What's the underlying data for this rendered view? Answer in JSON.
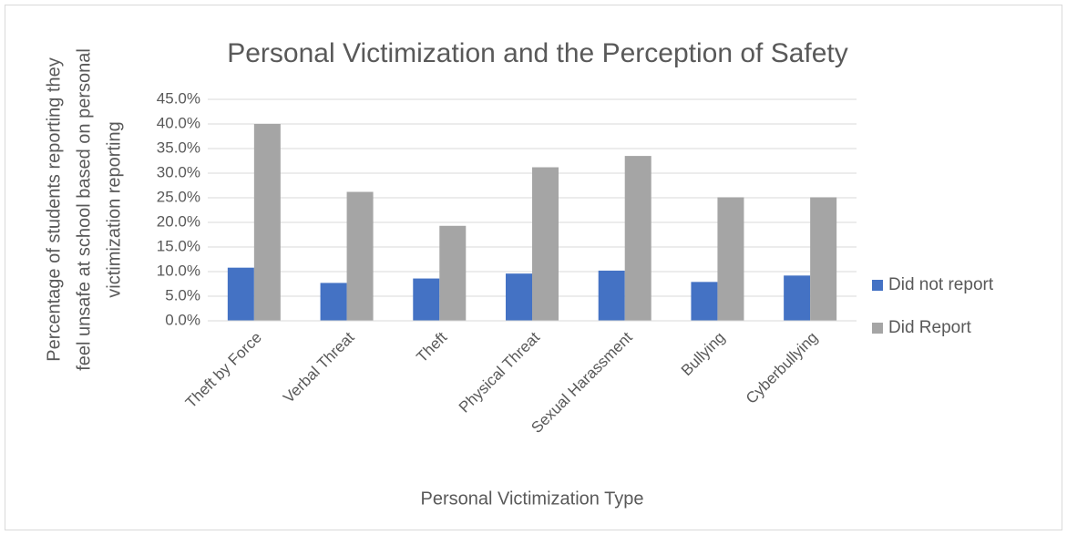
{
  "chart_data": {
    "type": "bar",
    "title": "Personal Victimization and the Perception of Safety",
    "x_label": "Personal Victimization Type",
    "y_label": [
      "Percentage of students reporting they",
      "feel unsafe at school based on personal",
      "victimization reporting"
    ],
    "categories": [
      "Theft by Force",
      "Verbal Threat",
      "Theft",
      "Physical Threat",
      "Sexual Harassment",
      "Bullying",
      "Cyberbullying"
    ],
    "series": [
      {
        "name": "Did not report",
        "color": "#4472c4",
        "values": [
          10.8,
          7.7,
          8.6,
          9.6,
          10.2,
          7.9,
          9.2
        ]
      },
      {
        "name": "Did Report",
        "color": "#a5a5a5",
        "values": [
          40.0,
          26.2,
          19.3,
          31.2,
          33.5,
          25.1,
          25.1
        ]
      }
    ],
    "ylim": [
      0,
      45
    ],
    "yticks": [
      {
        "value": 0,
        "label": "0.0%"
      },
      {
        "value": 5,
        "label": "5.0%"
      },
      {
        "value": 10,
        "label": "10.0%"
      },
      {
        "value": 15,
        "label": "15.0%"
      },
      {
        "value": 20,
        "label": "20.0%"
      },
      {
        "value": 25,
        "label": "25.0%"
      },
      {
        "value": 30,
        "label": "30.0%"
      },
      {
        "value": 35,
        "label": "35.0%"
      },
      {
        "value": 40,
        "label": "40.0%"
      },
      {
        "value": 45,
        "label": "45.0%"
      }
    ],
    "grid": true,
    "legend": "right"
  }
}
